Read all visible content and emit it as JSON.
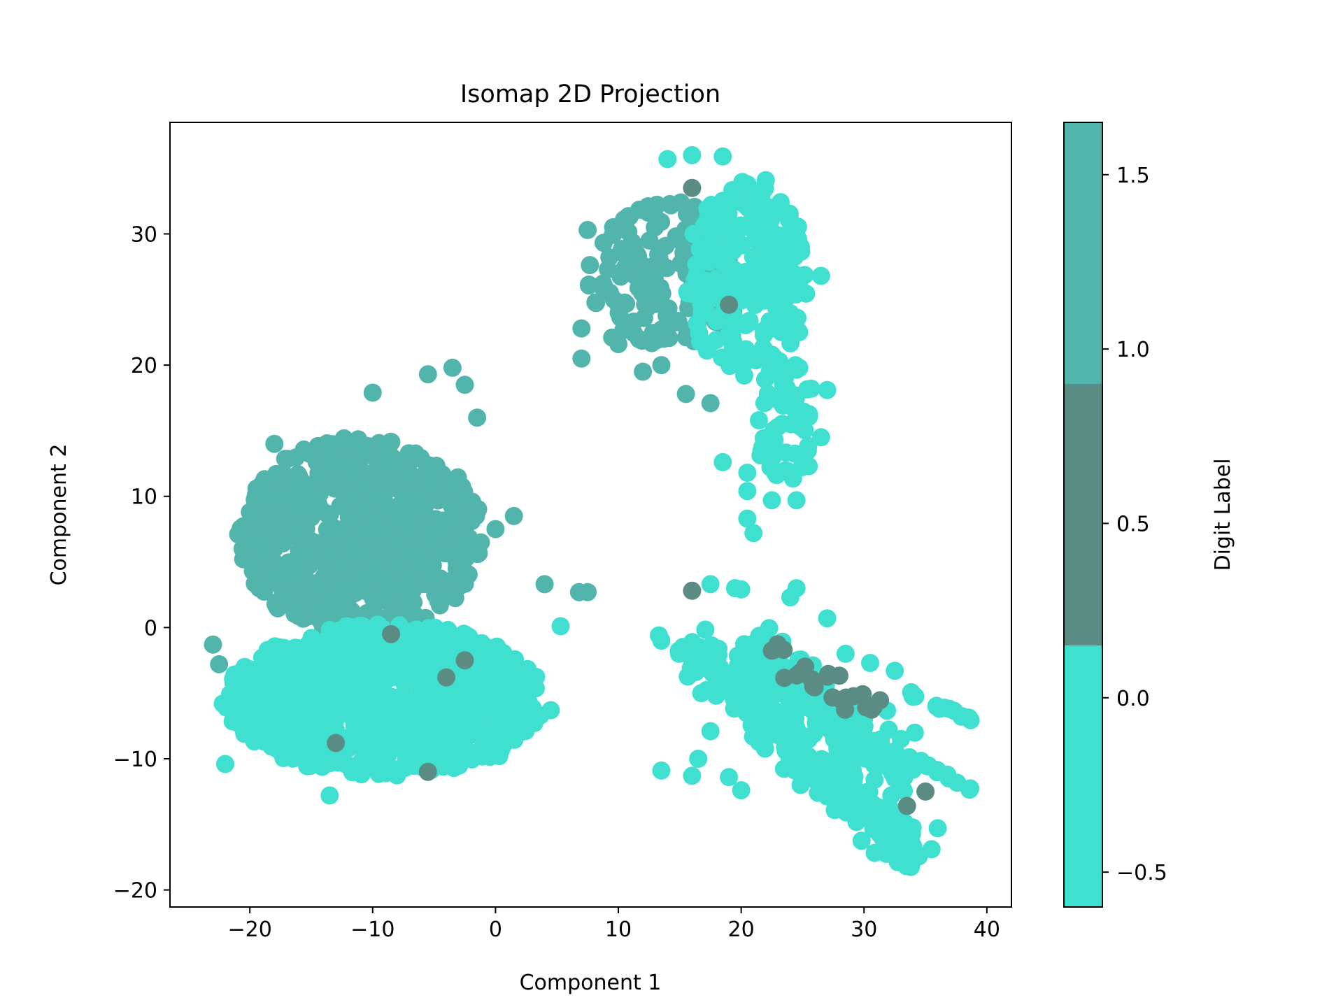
{
  "chart_data": {
    "type": "scatter",
    "title": "Isomap 2D Projection",
    "xlabel": "Component 1",
    "ylabel": "Component 2",
    "xlim": [
      -26.5,
      42
    ],
    "ylim": [
      -21.3,
      38.5
    ],
    "xticks": [
      -20,
      -10,
      0,
      10,
      20,
      30,
      40
    ],
    "xtick_labels": [
      "−20",
      "−10",
      "0",
      "10",
      "20",
      "30",
      "40"
    ],
    "yticks": [
      -20,
      -10,
      0,
      10,
      20,
      30
    ],
    "ytick_labels": [
      "−20",
      "−10",
      "0",
      "10",
      "20",
      "30"
    ],
    "grid": false,
    "colorbar": {
      "label": "Digit Label",
      "range": [
        -0.6,
        1.65
      ],
      "ticks": [
        -0.5,
        0.0,
        0.5,
        1.0,
        1.5
      ],
      "tick_labels": [
        "−0.5",
        "0.0",
        "0.5",
        "1.0",
        "1.5"
      ],
      "bands": [
        {
          "from": -0.6,
          "to": 0.15,
          "color": "#40E0D0"
        },
        {
          "from": 0.15,
          "to": 0.9,
          "color": "#5A8C84"
        },
        {
          "from": 0.9,
          "to": 1.65,
          "color": "#52B5AB"
        }
      ]
    },
    "colors": {
      "0": "#40E0D0",
      "1": "#52B5AB",
      "2": "#5A8C84"
    },
    "clusters": [
      {
        "label": 1,
        "cx": -11.0,
        "cy": 7.0,
        "rx": 10.0,
        "ry": 7.5,
        "n": 700
      },
      {
        "label": 0,
        "cx": -9.0,
        "cy": -5.5,
        "rx": 13.0,
        "ry": 5.8,
        "n": 900
      },
      {
        "label": 1,
        "cx": 14.0,
        "cy": 27.0,
        "rx": 6.5,
        "ry": 5.5,
        "n": 150
      },
      {
        "label": 0,
        "cx": 20.5,
        "cy": 26.5,
        "rx": 5.0,
        "ry": 7.5,
        "n": 220
      },
      {
        "label": 0,
        "cx": 23.5,
        "cy": 16.0,
        "rx": 2.5,
        "ry": 5.0,
        "n": 60
      }
    ],
    "streaks": [
      {
        "label": 0,
        "x0": 15.5,
        "y0": -1.0,
        "x1": 34.5,
        "y1": -18.0,
        "w": 1.8,
        "n": 260
      },
      {
        "label": 0,
        "x0": 20.0,
        "y0": -1.5,
        "x1": 34.0,
        "y1": -11.5,
        "w": 2.0,
        "n": 200
      },
      {
        "label": 0,
        "x0": 33.5,
        "y0": -5.0,
        "x1": 39.0,
        "y1": -7.2,
        "w": 0.2,
        "n": 14
      },
      {
        "label": 0,
        "x0": 35.0,
        "y0": -10.5,
        "x1": 38.8,
        "y1": -12.3,
        "w": 0.2,
        "n": 10
      },
      {
        "label": 2,
        "x0": 21.5,
        "y0": -1.5,
        "x1": 31.0,
        "y1": -6.5,
        "w": 1.0,
        "n": 28
      }
    ],
    "points": [
      {
        "x": -23.0,
        "y": -1.3,
        "label": 1
      },
      {
        "x": -22.5,
        "y": -2.8,
        "label": 1
      },
      {
        "x": -22.2,
        "y": -5.8,
        "label": 0
      },
      {
        "x": -22.0,
        "y": -10.4,
        "label": 0
      },
      {
        "x": -20.0,
        "y": 8.8,
        "label": 1
      },
      {
        "x": -18.0,
        "y": 14.0,
        "label": 1
      },
      {
        "x": -10.0,
        "y": 17.9,
        "label": 1
      },
      {
        "x": -5.5,
        "y": 19.3,
        "label": 1
      },
      {
        "x": -3.5,
        "y": 19.8,
        "label": 1
      },
      {
        "x": -2.5,
        "y": 18.5,
        "label": 1
      },
      {
        "x": -1.5,
        "y": 16.0,
        "label": 1
      },
      {
        "x": 1.5,
        "y": 8.5,
        "label": 1
      },
      {
        "x": 0.0,
        "y": 7.5,
        "label": 1
      },
      {
        "x": 4.0,
        "y": 3.3,
        "label": 1
      },
      {
        "x": 7.5,
        "y": 2.7,
        "label": 1
      },
      {
        "x": 6.8,
        "y": 2.7,
        "label": 1
      },
      {
        "x": 5.3,
        "y": 0.1,
        "label": 0
      },
      {
        "x": 4.5,
        "y": -6.3,
        "label": 0
      },
      {
        "x": 0.3,
        "y": -9.8,
        "label": 0
      },
      {
        "x": -13.5,
        "y": -12.8,
        "label": 0
      },
      {
        "x": -13.0,
        "y": -8.8,
        "label": 2
      },
      {
        "x": -5.5,
        "y": -11.0,
        "label": 2
      },
      {
        "x": -2.5,
        "y": -2.5,
        "label": 2
      },
      {
        "x": -4.0,
        "y": -3.8,
        "label": 2
      },
      {
        "x": -8.5,
        "y": -0.5,
        "label": 2
      },
      {
        "x": 7.0,
        "y": 22.8,
        "label": 1
      },
      {
        "x": 7.0,
        "y": 20.5,
        "label": 1
      },
      {
        "x": 7.5,
        "y": 30.3,
        "label": 1
      },
      {
        "x": 9.5,
        "y": 22.1,
        "label": 1
      },
      {
        "x": 10.0,
        "y": 21.6,
        "label": 1
      },
      {
        "x": 12.0,
        "y": 19.5,
        "label": 1
      },
      {
        "x": 13.5,
        "y": 20.0,
        "label": 1
      },
      {
        "x": 15.5,
        "y": 17.8,
        "label": 1
      },
      {
        "x": 17.5,
        "y": 17.1,
        "label": 1
      },
      {
        "x": 19.0,
        "y": 24.6,
        "label": 2
      },
      {
        "x": 16.0,
        "y": 33.5,
        "label": 2
      },
      {
        "x": 14.0,
        "y": 35.7,
        "label": 0
      },
      {
        "x": 16.0,
        "y": 36.0,
        "label": 0
      },
      {
        "x": 18.5,
        "y": 35.9,
        "label": 0
      },
      {
        "x": 22.0,
        "y": 34.1,
        "label": 0
      },
      {
        "x": 24.5,
        "y": 30.3,
        "label": 0
      },
      {
        "x": 26.5,
        "y": 26.8,
        "label": 0
      },
      {
        "x": 27.0,
        "y": 18.1,
        "label": 0
      },
      {
        "x": 26.5,
        "y": 14.5,
        "label": 0
      },
      {
        "x": 25.5,
        "y": 12.3,
        "label": 0
      },
      {
        "x": 24.5,
        "y": 9.7,
        "label": 0
      },
      {
        "x": 22.5,
        "y": 9.7,
        "label": 0
      },
      {
        "x": 20.5,
        "y": 8.3,
        "label": 0
      },
      {
        "x": 21.0,
        "y": 7.2,
        "label": 0
      },
      {
        "x": 20.5,
        "y": 10.4,
        "label": 0
      },
      {
        "x": 20.5,
        "y": 11.8,
        "label": 0
      },
      {
        "x": 18.5,
        "y": 12.6,
        "label": 0
      },
      {
        "x": 13.3,
        "y": -0.6,
        "label": 0
      },
      {
        "x": 13.5,
        "y": -1.0,
        "label": 0
      },
      {
        "x": 13.5,
        "y": -10.9,
        "label": 0
      },
      {
        "x": 16.0,
        "y": -11.3,
        "label": 0
      },
      {
        "x": 16.5,
        "y": -10.0,
        "label": 0
      },
      {
        "x": 17.5,
        "y": -7.9,
        "label": 0
      },
      {
        "x": 19.0,
        "y": -11.4,
        "label": 0
      },
      {
        "x": 20.0,
        "y": -12.4,
        "label": 0
      },
      {
        "x": 17.5,
        "y": 3.3,
        "label": 0
      },
      {
        "x": 19.5,
        "y": 3.0,
        "label": 0
      },
      {
        "x": 20.0,
        "y": 2.9,
        "label": 0
      },
      {
        "x": 24.0,
        "y": 2.3,
        "label": 0
      },
      {
        "x": 24.5,
        "y": 3.0,
        "label": 0
      },
      {
        "x": 27.0,
        "y": 0.7,
        "label": 0
      },
      {
        "x": 28.5,
        "y": -2.0,
        "label": 0
      },
      {
        "x": 30.5,
        "y": -2.7,
        "label": 0
      },
      {
        "x": 32.5,
        "y": -3.3,
        "label": 0
      },
      {
        "x": 16.0,
        "y": 2.8,
        "label": 2
      },
      {
        "x": 33.5,
        "y": -13.6,
        "label": 2
      },
      {
        "x": 35.0,
        "y": -12.5,
        "label": 2
      },
      {
        "x": 36.0,
        "y": -15.3,
        "label": 0
      },
      {
        "x": 35.5,
        "y": -16.9,
        "label": 0
      }
    ]
  }
}
